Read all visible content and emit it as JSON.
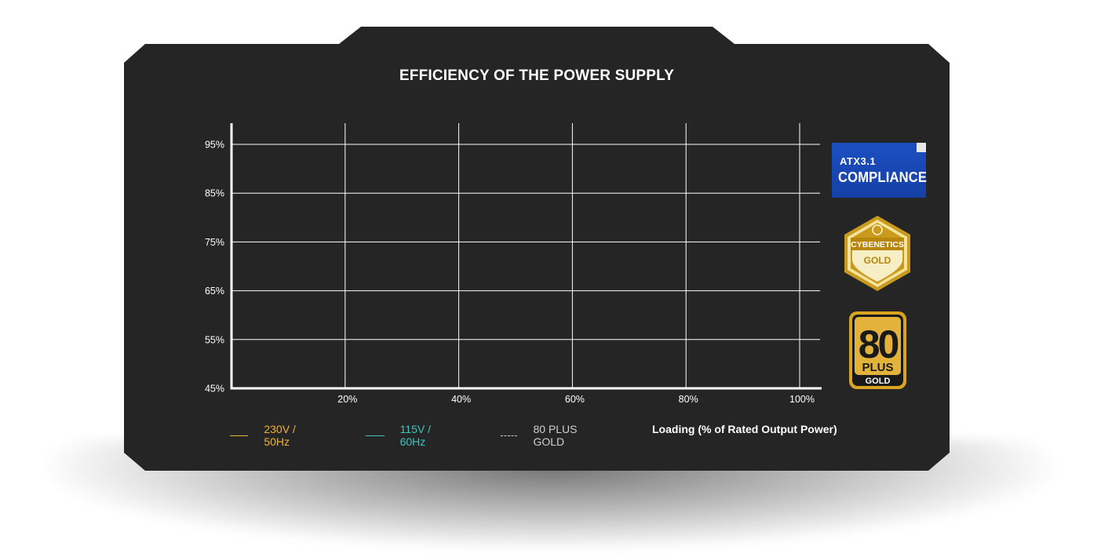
{
  "colors": {
    "panel": "#242424",
    "grid": "#ffffff",
    "series_230v": "#f2b12c",
    "series_115v": "#3cc7c1",
    "series_80plus": "#cfcfcf",
    "gold": "#c99a1e"
  },
  "chart_data": {
    "type": "line",
    "title": "EFFICIENCY OF THE POWER SUPPLY",
    "xlabel": "Loading (% of Rated Output Power)",
    "ylabel": "",
    "x_ticks": [
      "20%",
      "40%",
      "60%",
      "80%",
      "100%"
    ],
    "y_ticks": [
      "95%",
      "85%",
      "75%",
      "65%",
      "55%",
      "45%"
    ],
    "xlim": [
      0,
      100
    ],
    "ylim": [
      45,
      95
    ],
    "grid": true,
    "legend_position": "bottom",
    "series": [
      {
        "name": "230V / 50Hz",
        "color": "#f2b12c",
        "style": "solid",
        "values": []
      },
      {
        "name": "115V / 60Hz",
        "color": "#3cc7c1",
        "style": "solid",
        "values": []
      },
      {
        "name": "80 PLUS GOLD",
        "color": "#cfcfcf",
        "style": "dashed",
        "values": []
      }
    ]
  },
  "badges": {
    "atx": {
      "line1": "ATX3.1",
      "line2": "COMPLIANCE",
      "icon": "atx-compliance-icon"
    },
    "cybenetics": {
      "line1": "CYBENETICS",
      "line2": "GOLD",
      "icon": "cybenetics-gold-icon"
    },
    "plus80": {
      "line1": "80",
      "line2": "PLUS",
      "line3": "GOLD",
      "icon": "80plus-gold-icon"
    }
  }
}
